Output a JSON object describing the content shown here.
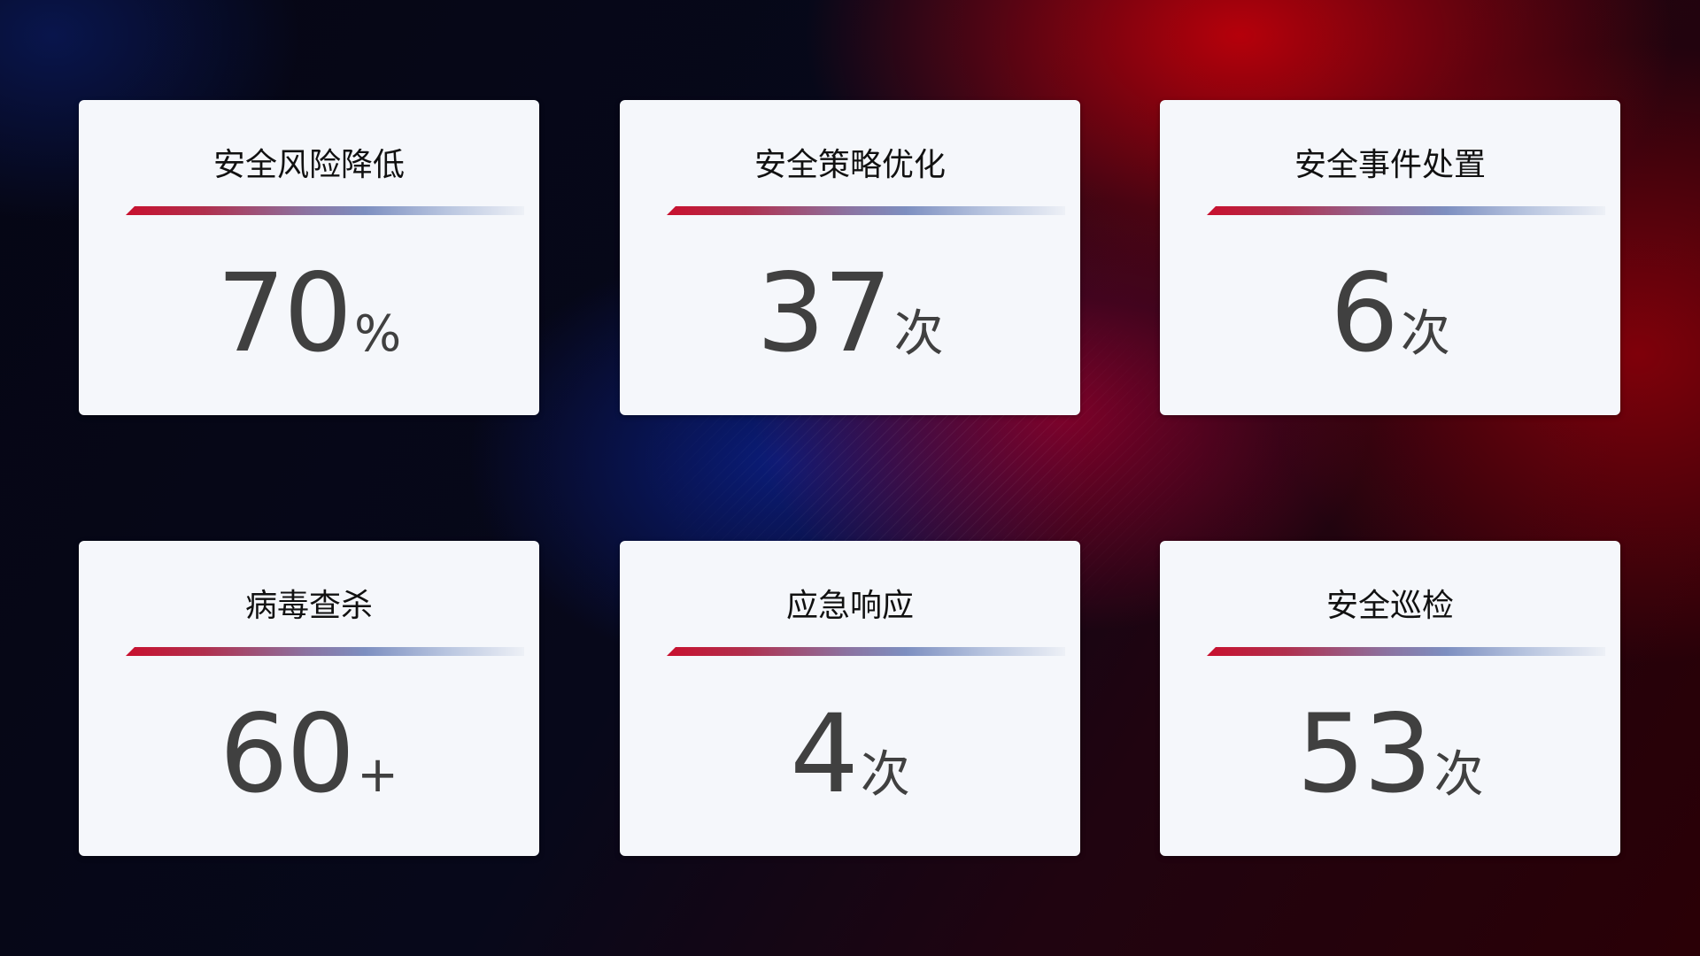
{
  "cards": [
    {
      "title": "安全风险降低",
      "value": "70",
      "unit": "%"
    },
    {
      "title": "安全策略优化",
      "value": "37",
      "unit": "次"
    },
    {
      "title": "安全事件处置",
      "value": "6",
      "unit": "次"
    },
    {
      "title": "病毒查杀",
      "value": "60",
      "unit": "+"
    },
    {
      "title": "应急响应",
      "value": "4",
      "unit": "次"
    },
    {
      "title": "安全巡检",
      "value": "53",
      "unit": "次"
    }
  ],
  "colors": {
    "accent_red": "#c8102e",
    "accent_blue": "#7d8fc0",
    "card_bg": "#f5f7fb",
    "value_text": "#404040"
  }
}
